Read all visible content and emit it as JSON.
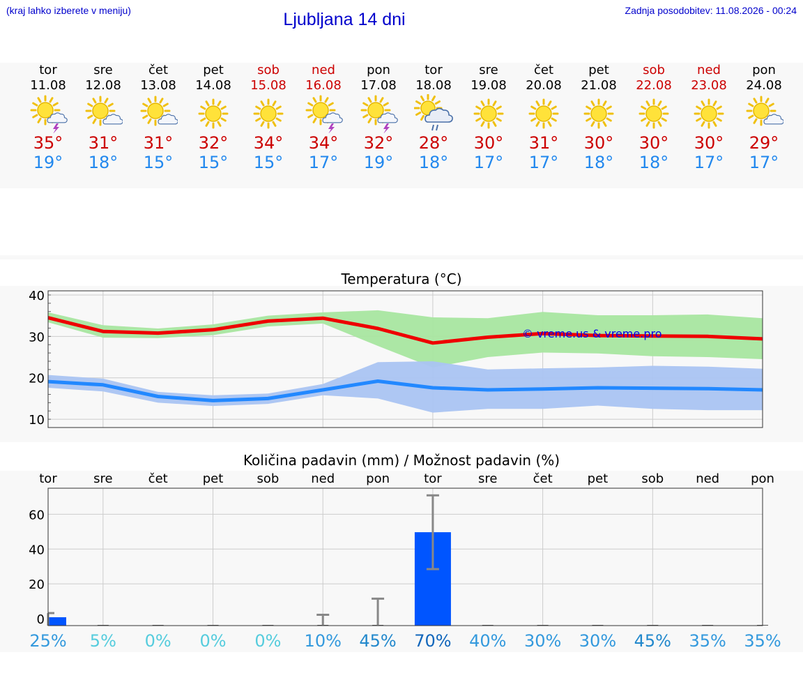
{
  "header": {
    "note": "(kraj lahko izberete v meniju)",
    "title": "Ljubljana 14 dni",
    "updated": "Zadnja posodobitev: 11.08.2026 - 00:24"
  },
  "colors": {
    "max": "#cc0000",
    "min": "#2288ee",
    "weekend": "#cc0000",
    "bar": "#0055ff",
    "range_max": "#a8e6a0",
    "range_min": "#aac4f2"
  },
  "days": [
    {
      "name": "tor",
      "date": "11.08",
      "weekend": false,
      "icon": "sun-cloud-thunder-icon",
      "max": "35°",
      "min": "19°"
    },
    {
      "name": "sre",
      "date": "12.08",
      "weekend": false,
      "icon": "sun-cloud-icon",
      "max": "31°",
      "min": "18°"
    },
    {
      "name": "čet",
      "date": "13.08",
      "weekend": false,
      "icon": "sun-cloud-icon",
      "max": "31°",
      "min": "15°"
    },
    {
      "name": "pet",
      "date": "14.08",
      "weekend": false,
      "icon": "sun-icon",
      "max": "32°",
      "min": "15°"
    },
    {
      "name": "sob",
      "date": "15.08",
      "weekend": true,
      "icon": "sun-icon",
      "max": "34°",
      "min": "15°"
    },
    {
      "name": "ned",
      "date": "16.08",
      "weekend": true,
      "icon": "sun-cloud-thunder-icon",
      "max": "34°",
      "min": "17°"
    },
    {
      "name": "pon",
      "date": "17.08",
      "weekend": false,
      "icon": "sun-cloud-thunder-icon",
      "max": "32°",
      "min": "19°"
    },
    {
      "name": "tor",
      "date": "18.08",
      "weekend": false,
      "icon": "sun-cloud-rain-icon",
      "max": "28°",
      "min": "18°"
    },
    {
      "name": "sre",
      "date": "19.08",
      "weekend": false,
      "icon": "sun-icon",
      "max": "30°",
      "min": "17°"
    },
    {
      "name": "čet",
      "date": "20.08",
      "weekend": false,
      "icon": "sun-icon",
      "max": "31°",
      "min": "17°"
    },
    {
      "name": "pet",
      "date": "21.08",
      "weekend": false,
      "icon": "sun-icon",
      "max": "30°",
      "min": "18°"
    },
    {
      "name": "sob",
      "date": "22.08",
      "weekend": true,
      "icon": "sun-icon",
      "max": "30°",
      "min": "18°"
    },
    {
      "name": "ned",
      "date": "23.08",
      "weekend": true,
      "icon": "sun-icon",
      "max": "30°",
      "min": "17°"
    },
    {
      "name": "pon",
      "date": "24.08",
      "weekend": false,
      "icon": "sun-cloud-icon",
      "max": "29°",
      "min": "17°"
    }
  ],
  "chart_data": [
    {
      "type": "line",
      "title": "Temperatura (°C)",
      "ylim": [
        8,
        41
      ],
      "yticks": [
        10,
        20,
        30,
        40
      ],
      "grid": true,
      "watermark": "© vreme.us & vreme.pro",
      "x_count": 14,
      "series": [
        {
          "key": "max",
          "values": [
            34.5,
            31.2,
            30.8,
            31.6,
            33.7,
            34.4,
            31.9,
            28.4,
            29.8,
            30.7,
            30.2,
            30.1,
            30.0,
            29.4
          ],
          "band_low": [
            33.4,
            29.7,
            29.6,
            30.3,
            32.4,
            33.1,
            27.7,
            22.5,
            25.0,
            26.1,
            25.9,
            25.2,
            25.0,
            24.5
          ],
          "band_high": [
            35.8,
            32.7,
            31.9,
            32.9,
            35.0,
            35.8,
            36.3,
            34.6,
            34.4,
            35.9,
            35.1,
            35.1,
            35.3,
            34.4
          ]
        },
        {
          "key": "min",
          "values": [
            19.1,
            18.3,
            15.5,
            14.5,
            15.0,
            17.1,
            19.2,
            17.6,
            17.1,
            17.3,
            17.6,
            17.5,
            17.4,
            17.1
          ],
          "band_low": [
            17.6,
            16.7,
            14.0,
            13.2,
            13.7,
            15.8,
            15.0,
            11.6,
            12.5,
            12.5,
            13.3,
            12.5,
            12.2,
            12.2
          ],
          "band_high": [
            20.7,
            19.8,
            16.6,
            15.8,
            16.2,
            18.5,
            23.8,
            24.0,
            22.0,
            22.3,
            22.5,
            22.9,
            22.7,
            22.2
          ]
        }
      ]
    },
    {
      "type": "bar",
      "title": "Količina padavin (mm) / Možnost padavin (%)",
      "categories": [
        "tor",
        "sre",
        "čet",
        "pet",
        "sob",
        "ned",
        "pon",
        "tor",
        "sre",
        "čet",
        "pet",
        "sob",
        "ned",
        "pon"
      ],
      "ylim": [
        -4,
        75
      ],
      "yticks": [
        0,
        20,
        40,
        60
      ],
      "grid": true,
      "values": [
        0.8,
        0,
        0,
        0,
        0,
        0,
        0,
        49.7,
        0,
        0,
        0,
        0,
        0,
        0
      ],
      "error_low": [
        0,
        0,
        0,
        0,
        0,
        0,
        0,
        28.5,
        0,
        0,
        0,
        0,
        0,
        0
      ],
      "error_high": [
        3.2,
        0,
        0,
        0,
        0,
        2.2,
        11.5,
        70.9,
        0,
        0,
        0,
        0,
        0,
        0
      ],
      "probability": [
        "25%",
        "5%",
        "0%",
        "0%",
        "0%",
        "10%",
        "45%",
        "70%",
        "40%",
        "30%",
        "30%",
        "45%",
        "35%",
        "35%"
      ],
      "probability_colors": [
        "#3399dd",
        "#55ccdd",
        "#55ccdd",
        "#55ccdd",
        "#55ccdd",
        "#3399dd",
        "#2288cc",
        "#1166bb",
        "#3399dd",
        "#3399dd",
        "#3399dd",
        "#2288cc",
        "#3399dd",
        "#3399dd"
      ]
    }
  ]
}
